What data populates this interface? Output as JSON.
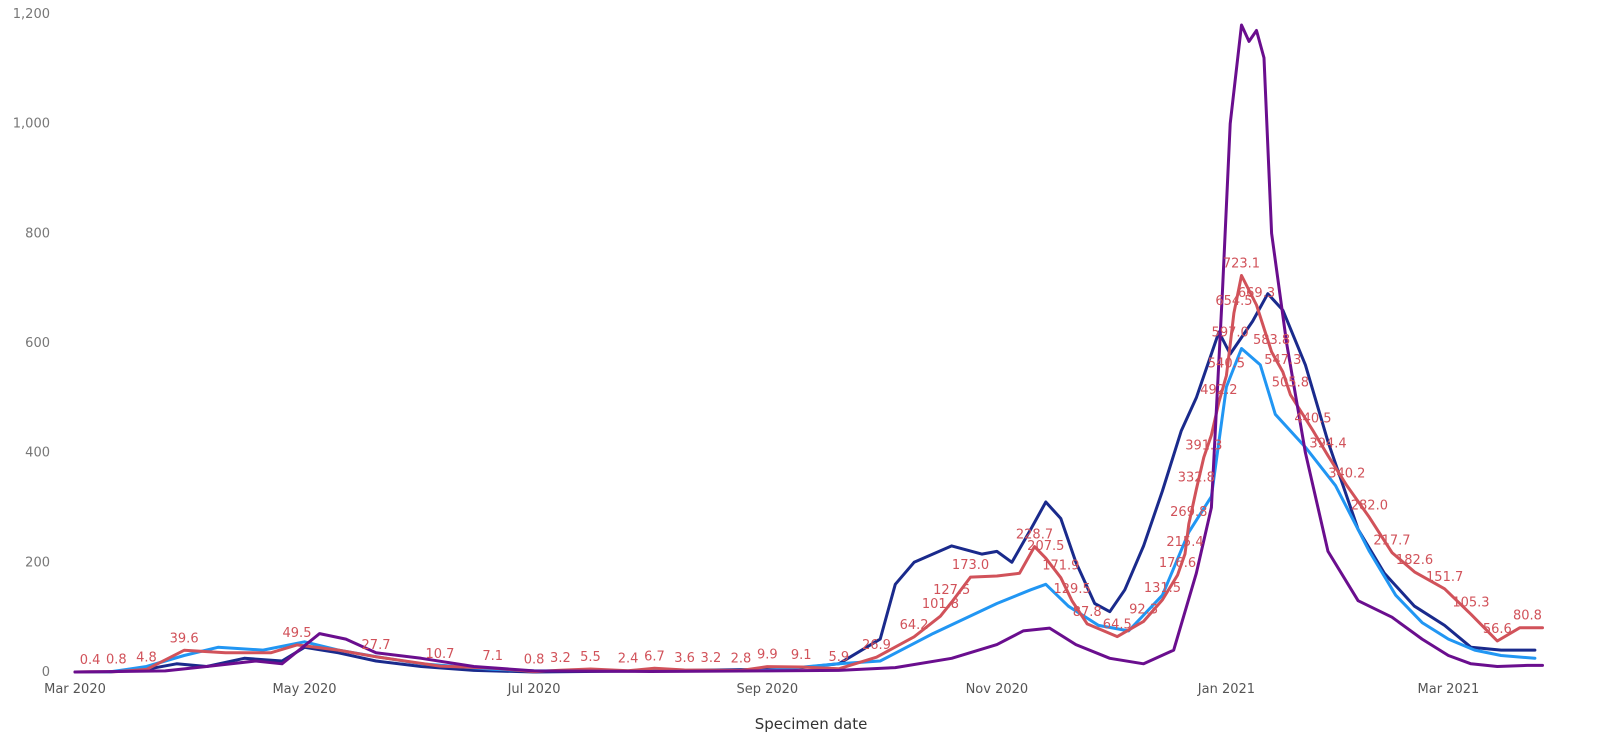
{
  "chart_data": {
    "type": "line",
    "xlabel": "Specimen date",
    "ylabel": "",
    "title": "",
    "ylim": [
      0,
      1200
    ],
    "y_ticks": [
      0,
      200,
      400,
      600,
      800,
      1000,
      1200
    ],
    "y_tick_labels": [
      "0",
      "200",
      "400",
      "600",
      "800",
      "1,000",
      "1,200"
    ],
    "xlim": [
      "2020-03-01",
      "2021-03-28"
    ],
    "x_ticks": [
      "2020-03-01",
      "2020-05-01",
      "2020-07-01",
      "2020-09-01",
      "2020-11-01",
      "2021-01-01",
      "2021-03-01"
    ],
    "x_tick_labels": [
      "Mar 2020",
      "May 2020",
      "Jul 2020",
      "Sep 2020",
      "Nov 2020",
      "Jan 2021",
      "Mar 2021"
    ],
    "grid": false,
    "series": [
      {
        "color": "#1a2a8c",
        "points": [
          [
            "2020-03-01",
            0
          ],
          [
            "2020-03-10",
            0
          ],
          [
            "2020-03-20",
            5
          ],
          [
            "2020-03-28",
            15
          ],
          [
            "2020-04-05",
            10
          ],
          [
            "2020-04-15",
            25
          ],
          [
            "2020-04-25",
            20
          ],
          [
            "2020-05-01",
            45
          ],
          [
            "2020-05-10",
            35
          ],
          [
            "2020-05-20",
            20
          ],
          [
            "2020-06-01",
            10
          ],
          [
            "2020-06-15",
            3
          ],
          [
            "2020-07-01",
            0
          ],
          [
            "2020-08-01",
            2
          ],
          [
            "2020-09-01",
            5
          ],
          [
            "2020-09-10",
            8
          ],
          [
            "2020-09-20",
            15
          ],
          [
            "2020-10-01",
            60
          ],
          [
            "2020-10-05",
            160
          ],
          [
            "2020-10-10",
            200
          ],
          [
            "2020-10-20",
            230
          ],
          [
            "2020-10-28",
            215
          ],
          [
            "2020-11-01",
            220
          ],
          [
            "2020-11-05",
            200
          ],
          [
            "2020-11-10",
            260
          ],
          [
            "2020-11-14",
            310
          ],
          [
            "2020-11-18",
            280
          ],
          [
            "2020-11-22",
            200
          ],
          [
            "2020-11-27",
            125
          ],
          [
            "2020-12-01",
            110
          ],
          [
            "2020-12-05",
            150
          ],
          [
            "2020-12-10",
            230
          ],
          [
            "2020-12-15",
            330
          ],
          [
            "2020-12-20",
            440
          ],
          [
            "2020-12-24",
            500
          ],
          [
            "2020-12-30",
            620
          ],
          [
            "2021-01-02",
            580
          ],
          [
            "2021-01-08",
            640
          ],
          [
            "2021-01-12",
            690
          ],
          [
            "2021-01-16",
            660
          ],
          [
            "2021-01-22",
            560
          ],
          [
            "2021-01-28",
            420
          ],
          [
            "2021-02-05",
            260
          ],
          [
            "2021-02-12",
            180
          ],
          [
            "2021-02-20",
            120
          ],
          [
            "2021-02-28",
            85
          ],
          [
            "2021-03-07",
            45
          ],
          [
            "2021-03-15",
            40
          ],
          [
            "2021-03-24",
            40
          ]
        ]
      },
      {
        "color": "#2196f3",
        "points": [
          [
            "2020-03-01",
            0
          ],
          [
            "2020-03-10",
            0
          ],
          [
            "2020-03-20",
            10
          ],
          [
            "2020-03-30",
            30
          ],
          [
            "2020-04-08",
            45
          ],
          [
            "2020-04-20",
            40
          ],
          [
            "2020-05-01",
            55
          ],
          [
            "2020-05-10",
            40
          ],
          [
            "2020-05-20",
            28
          ],
          [
            "2020-06-01",
            15
          ],
          [
            "2020-06-20",
            5
          ],
          [
            "2020-07-01",
            2
          ],
          [
            "2020-08-01",
            2
          ],
          [
            "2020-09-01",
            3
          ],
          [
            "2020-09-20",
            15
          ],
          [
            "2020-10-01",
            20
          ],
          [
            "2020-10-15",
            70
          ],
          [
            "2020-11-01",
            125
          ],
          [
            "2020-11-10",
            150
          ],
          [
            "2020-11-14",
            160
          ],
          [
            "2020-11-20",
            120
          ],
          [
            "2020-11-28",
            85
          ],
          [
            "2020-12-06",
            75
          ],
          [
            "2020-12-15",
            140
          ],
          [
            "2020-12-22",
            255
          ],
          [
            "2020-12-28",
            320
          ],
          [
            "2021-01-01",
            520
          ],
          [
            "2021-01-05",
            590
          ],
          [
            "2021-01-10",
            560
          ],
          [
            "2021-01-14",
            470
          ],
          [
            "2021-01-22",
            410
          ],
          [
            "2021-01-30",
            340
          ],
          [
            "2021-02-08",
            220
          ],
          [
            "2021-02-15",
            140
          ],
          [
            "2021-02-22",
            90
          ],
          [
            "2021-03-01",
            60
          ],
          [
            "2021-03-08",
            40
          ],
          [
            "2021-03-15",
            30
          ],
          [
            "2021-03-24",
            25
          ]
        ]
      },
      {
        "color": "#d1525a",
        "points": [
          [
            "2020-03-01",
            0
          ],
          [
            "2020-03-05",
            0.4
          ],
          [
            "2020-03-12",
            0.8
          ],
          [
            "2020-03-20",
            4.8
          ],
          [
            "2020-03-30",
            39.6
          ],
          [
            "2020-04-10",
            35
          ],
          [
            "2020-04-22",
            35
          ],
          [
            "2020-04-29",
            49.5
          ],
          [
            "2020-05-10",
            40
          ],
          [
            "2020-05-20",
            27.7
          ],
          [
            "2020-06-06",
            10.7
          ],
          [
            "2020-06-20",
            7.1
          ],
          [
            "2020-07-01",
            0.8
          ],
          [
            "2020-07-08",
            3.2
          ],
          [
            "2020-07-16",
            5.5
          ],
          [
            "2020-07-26",
            2.4
          ],
          [
            "2020-08-02",
            6.7
          ],
          [
            "2020-08-10",
            3.6
          ],
          [
            "2020-08-17",
            3.2
          ],
          [
            "2020-08-25",
            2.8
          ],
          [
            "2020-09-01",
            9.9
          ],
          [
            "2020-09-10",
            9.1
          ],
          [
            "2020-09-20",
            5.9
          ],
          [
            "2020-09-30",
            26.9
          ],
          [
            "2020-10-10",
            64.2
          ],
          [
            "2020-10-17",
            101.8
          ],
          [
            "2020-10-20",
            127.5
          ],
          [
            "2020-10-25",
            173
          ],
          [
            "2020-11-01",
            175
          ],
          [
            "2020-11-07",
            180
          ],
          [
            "2020-11-11",
            228.7
          ],
          [
            "2020-11-14",
            207.5
          ],
          [
            "2020-11-18",
            171.9
          ],
          [
            "2020-11-21",
            129.5
          ],
          [
            "2020-11-25",
            87.8
          ],
          [
            "2020-12-03",
            64.5
          ],
          [
            "2020-12-10",
            92.3
          ],
          [
            "2020-12-15",
            131.5
          ],
          [
            "2020-12-19",
            176.6
          ],
          [
            "2020-12-21",
            215.4
          ],
          [
            "2020-12-22",
            269.8
          ],
          [
            "2020-12-24",
            332.8
          ],
          [
            "2020-12-26",
            391.3
          ],
          [
            "2020-12-28",
            432
          ],
          [
            "2020-12-30",
            492.2
          ],
          [
            "2021-01-01",
            540.5
          ],
          [
            "2021-01-02",
            597
          ],
          [
            "2021-01-03",
            654.5
          ],
          [
            "2021-01-05",
            723.1
          ],
          [
            "2021-01-09",
            669.3
          ],
          [
            "2021-01-13",
            583.8
          ],
          [
            "2021-01-16",
            547.3
          ],
          [
            "2021-01-18",
            505.8
          ],
          [
            "2021-01-24",
            440.5
          ],
          [
            "2021-01-28",
            394.4
          ],
          [
            "2021-02-02",
            340.2
          ],
          [
            "2021-02-08",
            282
          ],
          [
            "2021-02-14",
            217.7
          ],
          [
            "2021-02-20",
            182.6
          ],
          [
            "2021-02-28",
            151.7
          ],
          [
            "2021-03-07",
            105.3
          ],
          [
            "2021-03-14",
            56.6
          ],
          [
            "2021-03-20",
            80.8
          ],
          [
            "2021-03-26",
            80.8
          ]
        ]
      },
      {
        "color": "#6a0e8e",
        "points": [
          [
            "2020-03-01",
            0
          ],
          [
            "2020-03-25",
            2
          ],
          [
            "2020-04-05",
            10
          ],
          [
            "2020-04-18",
            20
          ],
          [
            "2020-04-25",
            15
          ],
          [
            "2020-05-05",
            70
          ],
          [
            "2020-05-12",
            60
          ],
          [
            "2020-05-20",
            35
          ],
          [
            "2020-06-01",
            25
          ],
          [
            "2020-06-15",
            10
          ],
          [
            "2020-07-01",
            2
          ],
          [
            "2020-08-01",
            1
          ],
          [
            "2020-09-01",
            2
          ],
          [
            "2020-09-20",
            3
          ],
          [
            "2020-10-05",
            8
          ],
          [
            "2020-10-20",
            25
          ],
          [
            "2020-11-01",
            50
          ],
          [
            "2020-11-08",
            75
          ],
          [
            "2020-11-15",
            80
          ],
          [
            "2020-11-22",
            50
          ],
          [
            "2020-12-01",
            25
          ],
          [
            "2020-12-10",
            15
          ],
          [
            "2020-12-18",
            40
          ],
          [
            "2020-12-24",
            180
          ],
          [
            "2020-12-28",
            300
          ],
          [
            "2020-12-31",
            700
          ],
          [
            "2021-01-02",
            1000
          ],
          [
            "2021-01-05",
            1180
          ],
          [
            "2021-01-07",
            1150
          ],
          [
            "2021-01-09",
            1170
          ],
          [
            "2021-01-11",
            1120
          ],
          [
            "2021-01-13",
            800
          ],
          [
            "2021-01-17",
            600
          ],
          [
            "2021-01-22",
            400
          ],
          [
            "2021-01-28",
            220
          ],
          [
            "2021-02-05",
            130
          ],
          [
            "2021-02-14",
            100
          ],
          [
            "2021-02-22",
            60
          ],
          [
            "2021-03-01",
            30
          ],
          [
            "2021-03-07",
            15
          ],
          [
            "2021-03-14",
            10
          ],
          [
            "2021-03-22",
            12
          ],
          [
            "2021-03-26",
            12
          ]
        ]
      }
    ],
    "data_labels": [
      {
        "x": "2020-03-05",
        "y": 0.4,
        "text": "0.4"
      },
      {
        "x": "2020-03-12",
        "y": 0.8,
        "text": "0.8"
      },
      {
        "x": "2020-03-20",
        "y": 4.8,
        "text": "4.8"
      },
      {
        "x": "2020-03-30",
        "y": 39.6,
        "text": "39.6"
      },
      {
        "x": "2020-04-29",
        "y": 49.5,
        "text": "49.5"
      },
      {
        "x": "2020-05-20",
        "y": 27.7,
        "text": "27.7"
      },
      {
        "x": "2020-06-06",
        "y": 10.7,
        "text": "10.7"
      },
      {
        "x": "2020-06-20",
        "y": 7.1,
        "text": "7.1"
      },
      {
        "x": "2020-07-01",
        "y": 0.8,
        "text": "0.8"
      },
      {
        "x": "2020-07-08",
        "y": 3.2,
        "text": "3.2"
      },
      {
        "x": "2020-07-16",
        "y": 5.5,
        "text": "5.5"
      },
      {
        "x": "2020-07-26",
        "y": 2.4,
        "text": "2.4"
      },
      {
        "x": "2020-08-02",
        "y": 6.7,
        "text": "6.7"
      },
      {
        "x": "2020-08-10",
        "y": 3.6,
        "text": "3.6"
      },
      {
        "x": "2020-08-17",
        "y": 3.2,
        "text": "3.2"
      },
      {
        "x": "2020-08-25",
        "y": 2.8,
        "text": "2.8"
      },
      {
        "x": "2020-09-01",
        "y": 9.9,
        "text": "9.9"
      },
      {
        "x": "2020-09-10",
        "y": 9.1,
        "text": "9.1"
      },
      {
        "x": "2020-09-20",
        "y": 5.9,
        "text": "5.9"
      },
      {
        "x": "2020-09-30",
        "y": 26.9,
        "text": "26.9"
      },
      {
        "x": "2020-10-10",
        "y": 64.2,
        "text": "64.2"
      },
      {
        "x": "2020-10-17",
        "y": 101.8,
        "text": "101.8"
      },
      {
        "x": "2020-10-20",
        "y": 127.5,
        "text": "127.5"
      },
      {
        "x": "2020-10-25",
        "y": 173.0,
        "text": "173.0"
      },
      {
        "x": "2020-11-11",
        "y": 228.7,
        "text": "228.7"
      },
      {
        "x": "2020-11-14",
        "y": 207.5,
        "text": "207.5"
      },
      {
        "x": "2020-11-18",
        "y": 171.9,
        "text": "171.9"
      },
      {
        "x": "2020-11-21",
        "y": 129.5,
        "text": "129.5"
      },
      {
        "x": "2020-11-25",
        "y": 87.8,
        "text": "87.8"
      },
      {
        "x": "2020-12-03",
        "y": 64.5,
        "text": "64.5"
      },
      {
        "x": "2020-12-10",
        "y": 92.3,
        "text": "92.3"
      },
      {
        "x": "2020-12-15",
        "y": 131.5,
        "text": "131.5"
      },
      {
        "x": "2020-12-19",
        "y": 176.6,
        "text": "176.6"
      },
      {
        "x": "2020-12-21",
        "y": 215.4,
        "text": "215.4"
      },
      {
        "x": "2020-12-22",
        "y": 269.8,
        "text": "269.8"
      },
      {
        "x": "2020-12-24",
        "y": 332.8,
        "text": "332.8"
      },
      {
        "x": "2020-12-26",
        "y": 391.3,
        "text": "391.3"
      },
      {
        "x": "2020-12-30",
        "y": 492.2,
        "text": "492.2"
      },
      {
        "x": "2021-01-01",
        "y": 540.5,
        "text": "540.5"
      },
      {
        "x": "2021-01-02",
        "y": 597.0,
        "text": "597.0"
      },
      {
        "x": "2021-01-03",
        "y": 654.5,
        "text": "654.5"
      },
      {
        "x": "2021-01-05",
        "y": 723.1,
        "text": "723.1"
      },
      {
        "x": "2021-01-09",
        "y": 669.3,
        "text": "669.3"
      },
      {
        "x": "2021-01-13",
        "y": 583.8,
        "text": "583.8"
      },
      {
        "x": "2021-01-16",
        "y": 547.3,
        "text": "547.3"
      },
      {
        "x": "2021-01-18",
        "y": 505.8,
        "text": "505.8"
      },
      {
        "x": "2021-01-24",
        "y": 440.5,
        "text": "440.5"
      },
      {
        "x": "2021-01-28",
        "y": 394.4,
        "text": "394.4"
      },
      {
        "x": "2021-02-02",
        "y": 340.2,
        "text": "340.2"
      },
      {
        "x": "2021-02-08",
        "y": 282.0,
        "text": "282.0"
      },
      {
        "x": "2021-02-14",
        "y": 217.7,
        "text": "217.7"
      },
      {
        "x": "2021-02-20",
        "y": 182.6,
        "text": "182.6"
      },
      {
        "x": "2021-02-28",
        "y": 151.7,
        "text": "151.7"
      },
      {
        "x": "2021-03-07",
        "y": 105.3,
        "text": "105.3"
      },
      {
        "x": "2021-03-14",
        "y": 56.6,
        "text": "56.6"
      },
      {
        "x": "2021-03-22",
        "y": 80.8,
        "text": "80.8"
      }
    ]
  }
}
